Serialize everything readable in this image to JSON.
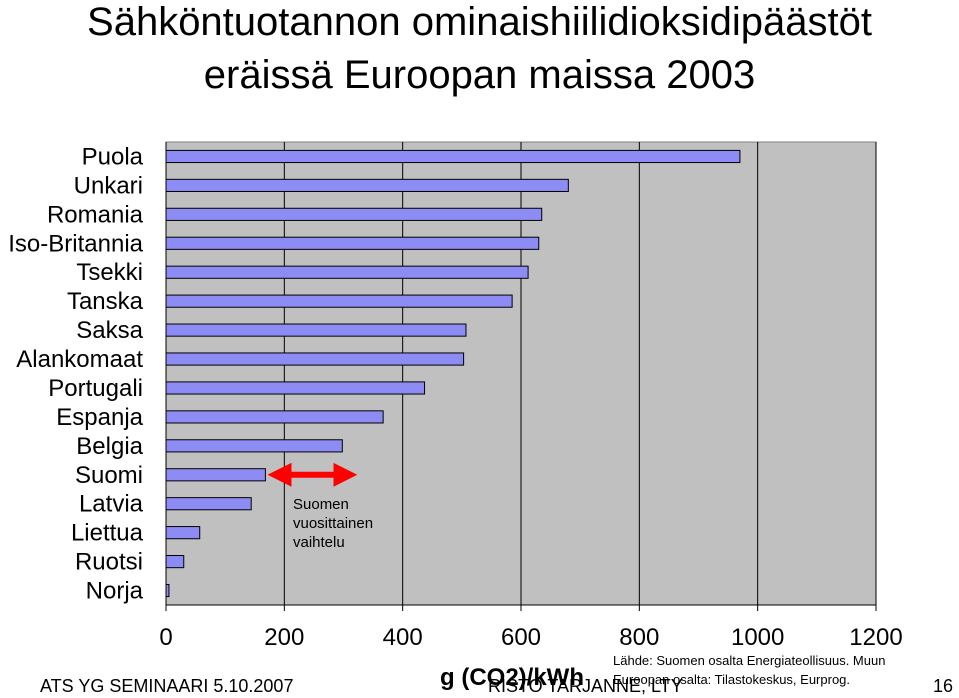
{
  "title_line1": "Sähköntuotannon ominaishiilidioksidipäästöt",
  "title_line2": "eräissä Euroopan maissa 2003",
  "chart_data": {
    "type": "bar",
    "orientation": "horizontal",
    "title": "Sähköntuotannon ominaishiilidioksidipäästöt eräissä Euroopan maissa 2003",
    "categories": [
      "Puola",
      "Unkari",
      "Romania",
      "Iso-Britannia",
      "Tsekki",
      "Tanska",
      "Saksa",
      "Alankomaat",
      "Portugali",
      "Espanja",
      "Belgia",
      "Suomi",
      "Latvia",
      "Liettua",
      "Ruotsi",
      "Norja"
    ],
    "values": [
      970,
      680,
      635,
      630,
      612,
      585,
      507,
      503,
      437,
      367,
      298,
      168,
      144,
      57,
      30,
      5
    ],
    "xlabel": "g (CO2)/kWh",
    "ylabel": "",
    "xlim": [
      0,
      1200
    ],
    "xticks": [
      0,
      200,
      400,
      600,
      800,
      1000,
      1200
    ],
    "grid": true,
    "bar_color": "#8c8cf4",
    "plot_background": "#c0c0c0",
    "annotation": {
      "lines": [
        "Suomen",
        "vuosittainen",
        "vaihtelu"
      ],
      "arrow_color": "#ff0000",
      "arrow_range": [
        175,
        320
      ]
    }
  },
  "footer": {
    "left": "ATS YG SEMINAARI 5.10.2007",
    "center": "RISTO TARJANNE, LTY",
    "page": "16",
    "source_line1": "Lähde: Suomen osalta Energiateollisuus. Muun",
    "source_line2": "Euroopan osalta: Tilastokeskus, Eurprog."
  }
}
